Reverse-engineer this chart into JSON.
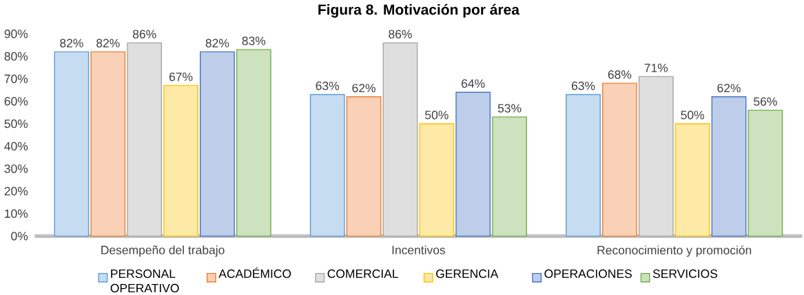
{
  "chart_data": {
    "type": "bar",
    "title": "Figura 8. Motivación por área",
    "categories": [
      "Desempeño del trabajo",
      "Incentivos",
      "Reconocimiento y promoción"
    ],
    "series": [
      {
        "name": "PERSONAL OPERATIVO",
        "color": "#5b9bd5",
        "values": [
          82,
          63,
          63
        ],
        "value_labels": [
          "82%",
          "63%",
          "63%"
        ]
      },
      {
        "name": "ACADÉMICO",
        "color": "#ed7d31",
        "values": [
          82,
          62,
          68
        ],
        "value_labels": [
          "82%",
          "62%",
          "68%"
        ]
      },
      {
        "name": "COMERCIAL",
        "color": "#a5a5a5",
        "values": [
          86,
          86,
          71
        ],
        "value_labels": [
          "86%",
          "86%",
          "71%"
        ]
      },
      {
        "name": "GERENCIA",
        "color": "#ffc000",
        "values": [
          67,
          50,
          50
        ],
        "value_labels": [
          "67%",
          "50%",
          "50%"
        ]
      },
      {
        "name": "OPERACIONES",
        "color": "#4472c4",
        "values": [
          82,
          64,
          62
        ],
        "value_labels": [
          "82%",
          "64%",
          "62%"
        ]
      },
      {
        "name": "SERVICIOS",
        "color": "#70ad47",
        "values": [
          83,
          53,
          56
        ],
        "value_labels": [
          "83%",
          "53%",
          "56%"
        ]
      }
    ],
    "ylim": [
      0,
      90
    ],
    "yticks": [
      {
        "value": 0,
        "label": "0%"
      },
      {
        "value": 10,
        "label": "10%"
      },
      {
        "value": 20,
        "label": "20%"
      },
      {
        "value": 30,
        "label": "30%"
      },
      {
        "value": 40,
        "label": "40%"
      },
      {
        "value": 50,
        "label": "50%"
      },
      {
        "value": 60,
        "label": "60%"
      },
      {
        "value": 70,
        "label": "70%"
      },
      {
        "value": 80,
        "label": "80%"
      },
      {
        "value": 90,
        "label": "90%"
      }
    ],
    "grid": false,
    "legend": "bottom"
  }
}
